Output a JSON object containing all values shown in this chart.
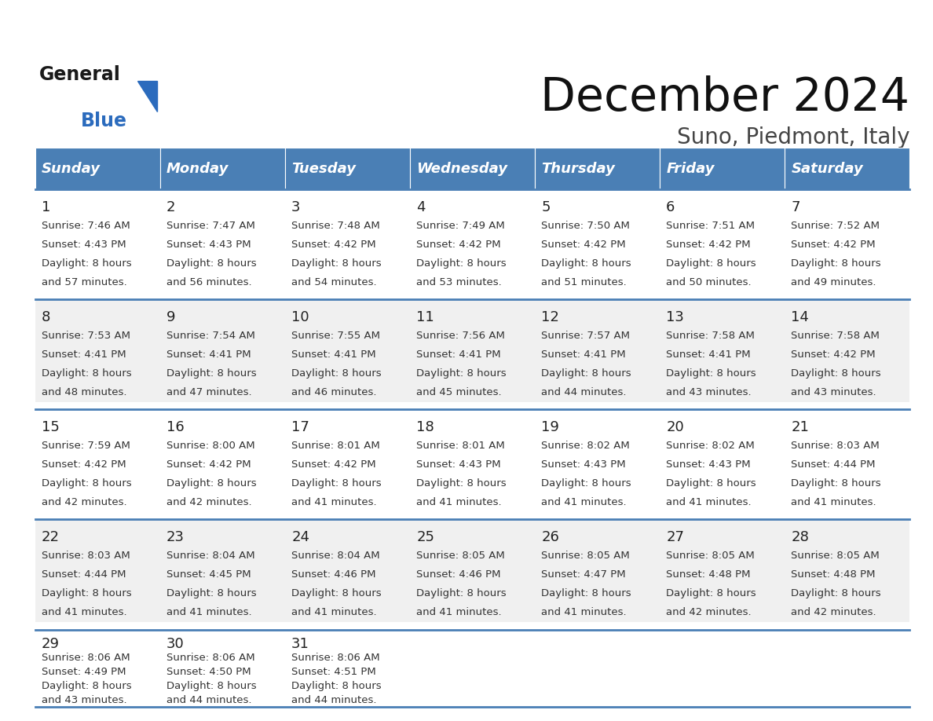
{
  "title": "December 2024",
  "subtitle": "Suno, Piedmont, Italy",
  "header_color": "#4A7FB5",
  "header_text_color": "#FFFFFF",
  "days_of_week": [
    "Sunday",
    "Monday",
    "Tuesday",
    "Wednesday",
    "Thursday",
    "Friday",
    "Saturday"
  ],
  "background_color": "#FFFFFF",
  "cell_bg_gray": "#F0F0F0",
  "cell_bg_white": "#FFFFFF",
  "separator_color": "#4A7FB5",
  "text_color": "#333333",
  "calendar_data": [
    [
      {
        "day": 1,
        "sunrise": "7:46 AM",
        "sunset": "4:43 PM",
        "daylight_line1": "Daylight: 8 hours",
        "daylight_line2": "and 57 minutes."
      },
      {
        "day": 2,
        "sunrise": "7:47 AM",
        "sunset": "4:43 PM",
        "daylight_line1": "Daylight: 8 hours",
        "daylight_line2": "and 56 minutes."
      },
      {
        "day": 3,
        "sunrise": "7:48 AM",
        "sunset": "4:42 PM",
        "daylight_line1": "Daylight: 8 hours",
        "daylight_line2": "and 54 minutes."
      },
      {
        "day": 4,
        "sunrise": "7:49 AM",
        "sunset": "4:42 PM",
        "daylight_line1": "Daylight: 8 hours",
        "daylight_line2": "and 53 minutes."
      },
      {
        "day": 5,
        "sunrise": "7:50 AM",
        "sunset": "4:42 PM",
        "daylight_line1": "Daylight: 8 hours",
        "daylight_line2": "and 51 minutes."
      },
      {
        "day": 6,
        "sunrise": "7:51 AM",
        "sunset": "4:42 PM",
        "daylight_line1": "Daylight: 8 hours",
        "daylight_line2": "and 50 minutes."
      },
      {
        "day": 7,
        "sunrise": "7:52 AM",
        "sunset": "4:42 PM",
        "daylight_line1": "Daylight: 8 hours",
        "daylight_line2": "and 49 minutes."
      }
    ],
    [
      {
        "day": 8,
        "sunrise": "7:53 AM",
        "sunset": "4:41 PM",
        "daylight_line1": "Daylight: 8 hours",
        "daylight_line2": "and 48 minutes."
      },
      {
        "day": 9,
        "sunrise": "7:54 AM",
        "sunset": "4:41 PM",
        "daylight_line1": "Daylight: 8 hours",
        "daylight_line2": "and 47 minutes."
      },
      {
        "day": 10,
        "sunrise": "7:55 AM",
        "sunset": "4:41 PM",
        "daylight_line1": "Daylight: 8 hours",
        "daylight_line2": "and 46 minutes."
      },
      {
        "day": 11,
        "sunrise": "7:56 AM",
        "sunset": "4:41 PM",
        "daylight_line1": "Daylight: 8 hours",
        "daylight_line2": "and 45 minutes."
      },
      {
        "day": 12,
        "sunrise": "7:57 AM",
        "sunset": "4:41 PM",
        "daylight_line1": "Daylight: 8 hours",
        "daylight_line2": "and 44 minutes."
      },
      {
        "day": 13,
        "sunrise": "7:58 AM",
        "sunset": "4:41 PM",
        "daylight_line1": "Daylight: 8 hours",
        "daylight_line2": "and 43 minutes."
      },
      {
        "day": 14,
        "sunrise": "7:58 AM",
        "sunset": "4:42 PM",
        "daylight_line1": "Daylight: 8 hours",
        "daylight_line2": "and 43 minutes."
      }
    ],
    [
      {
        "day": 15,
        "sunrise": "7:59 AM",
        "sunset": "4:42 PM",
        "daylight_line1": "Daylight: 8 hours",
        "daylight_line2": "and 42 minutes."
      },
      {
        "day": 16,
        "sunrise": "8:00 AM",
        "sunset": "4:42 PM",
        "daylight_line1": "Daylight: 8 hours",
        "daylight_line2": "and 42 minutes."
      },
      {
        "day": 17,
        "sunrise": "8:01 AM",
        "sunset": "4:42 PM",
        "daylight_line1": "Daylight: 8 hours",
        "daylight_line2": "and 41 minutes."
      },
      {
        "day": 18,
        "sunrise": "8:01 AM",
        "sunset": "4:43 PM",
        "daylight_line1": "Daylight: 8 hours",
        "daylight_line2": "and 41 minutes."
      },
      {
        "day": 19,
        "sunrise": "8:02 AM",
        "sunset": "4:43 PM",
        "daylight_line1": "Daylight: 8 hours",
        "daylight_line2": "and 41 minutes."
      },
      {
        "day": 20,
        "sunrise": "8:02 AM",
        "sunset": "4:43 PM",
        "daylight_line1": "Daylight: 8 hours",
        "daylight_line2": "and 41 minutes."
      },
      {
        "day": 21,
        "sunrise": "8:03 AM",
        "sunset": "4:44 PM",
        "daylight_line1": "Daylight: 8 hours",
        "daylight_line2": "and 41 minutes."
      }
    ],
    [
      {
        "day": 22,
        "sunrise": "8:03 AM",
        "sunset": "4:44 PM",
        "daylight_line1": "Daylight: 8 hours",
        "daylight_line2": "and 41 minutes."
      },
      {
        "day": 23,
        "sunrise": "8:04 AM",
        "sunset": "4:45 PM",
        "daylight_line1": "Daylight: 8 hours",
        "daylight_line2": "and 41 minutes."
      },
      {
        "day": 24,
        "sunrise": "8:04 AM",
        "sunset": "4:46 PM",
        "daylight_line1": "Daylight: 8 hours",
        "daylight_line2": "and 41 minutes."
      },
      {
        "day": 25,
        "sunrise": "8:05 AM",
        "sunset": "4:46 PM",
        "daylight_line1": "Daylight: 8 hours",
        "daylight_line2": "and 41 minutes."
      },
      {
        "day": 26,
        "sunrise": "8:05 AM",
        "sunset": "4:47 PM",
        "daylight_line1": "Daylight: 8 hours",
        "daylight_line2": "and 41 minutes."
      },
      {
        "day": 27,
        "sunrise": "8:05 AM",
        "sunset": "4:48 PM",
        "daylight_line1": "Daylight: 8 hours",
        "daylight_line2": "and 42 minutes."
      },
      {
        "day": 28,
        "sunrise": "8:05 AM",
        "sunset": "4:48 PM",
        "daylight_line1": "Daylight: 8 hours",
        "daylight_line2": "and 42 minutes."
      }
    ],
    [
      {
        "day": 29,
        "sunrise": "8:06 AM",
        "sunset": "4:49 PM",
        "daylight_line1": "Daylight: 8 hours",
        "daylight_line2": "and 43 minutes."
      },
      {
        "day": 30,
        "sunrise": "8:06 AM",
        "sunset": "4:50 PM",
        "daylight_line1": "Daylight: 8 hours",
        "daylight_line2": "and 44 minutes."
      },
      {
        "day": 31,
        "sunrise": "8:06 AM",
        "sunset": "4:51 PM",
        "daylight_line1": "Daylight: 8 hours",
        "daylight_line2": "and 44 minutes."
      },
      null,
      null,
      null,
      null
    ]
  ],
  "logo_general_color": "#1a1a1a",
  "logo_blue_color": "#2B6BBD"
}
